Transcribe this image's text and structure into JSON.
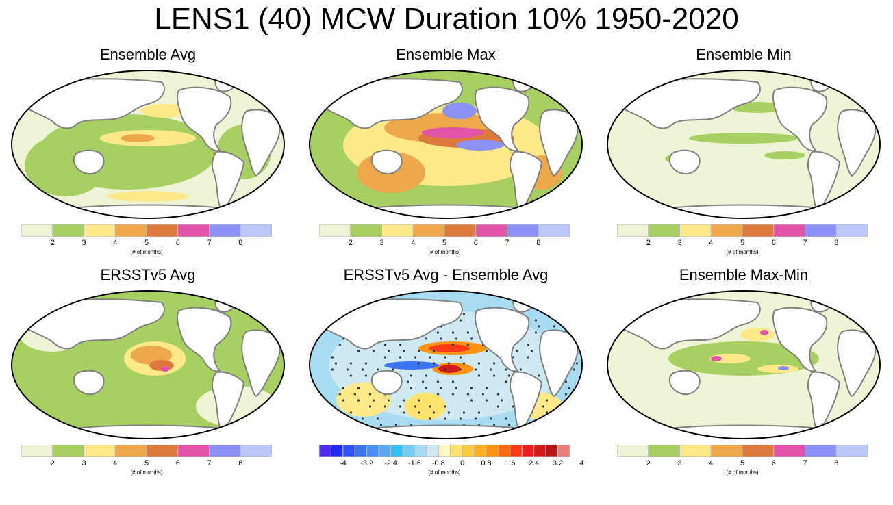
{
  "title": "LENS1 (40) MCW Duration 10% 1950-2020",
  "panels": [
    {
      "title": "Ensemble Avg",
      "map": "ensemble-avg"
    },
    {
      "title": "Ensemble Max",
      "map": "ensemble-max"
    },
    {
      "title": "Ensemble Min",
      "map": "ensemble-min"
    },
    {
      "title": "ERSSTv5 Avg",
      "map": "ersstv5-avg"
    },
    {
      "title": "ERSSTv5 Avg - Ensemble Avg",
      "map": "difference"
    },
    {
      "title": "Ensemble Max-Min",
      "map": "ensemble-range"
    }
  ],
  "colorbar": {
    "colors": [
      "#eef5d6",
      "#a8cf62",
      "#fde98a",
      "#eda84c",
      "#dc7a3e",
      "#e254a8",
      "#8b91f6",
      "#bcc9f8"
    ],
    "ticks": [
      "2",
      "3",
      "4",
      "5",
      "6",
      "7",
      "8"
    ],
    "unit": "(# of months)"
  },
  "diff_colorbar": {
    "colors": [
      "#4b2df2",
      "#1f2af5",
      "#2e55f3",
      "#3b73f0",
      "#4b8ff0",
      "#5aa9f3",
      "#36bff3",
      "#76cdf3",
      "#a8dcf3",
      "#cfe9f3",
      "#fff7c8",
      "#ffe36e",
      "#ffcb44",
      "#ffb022",
      "#ff9414",
      "#ff6a14",
      "#ff3a14",
      "#ee1c1c",
      "#d21c1c",
      "#b81616",
      "#ec7c7c"
    ],
    "ticks": [
      "-4",
      "-3.2",
      "-2.4",
      "-1.6",
      "-0.8",
      "0",
      "0.8",
      "1.6",
      "2.4",
      "3.2",
      "4"
    ],
    "unit": "(# of months)"
  }
}
